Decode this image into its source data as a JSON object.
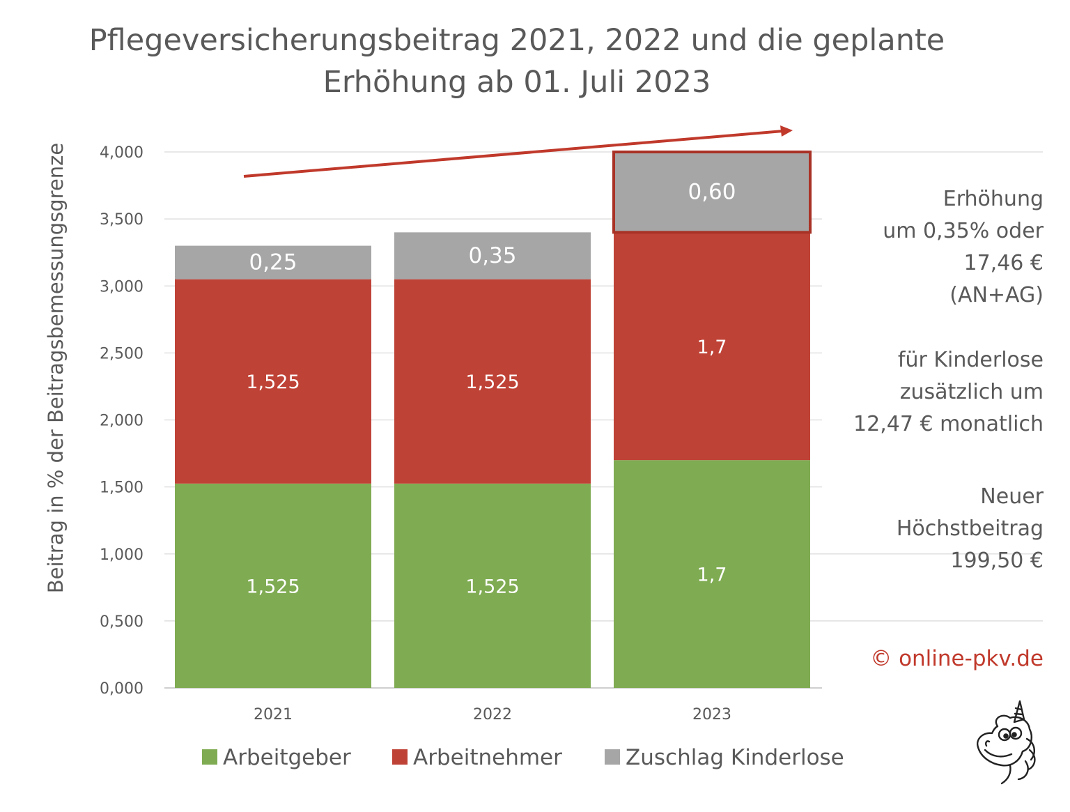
{
  "chart_data": {
    "type": "bar",
    "stacked": true,
    "title_lines": [
      "Pflegeversicherungsbeitrag 2021, 2022 und die geplante",
      "Erhöhung ab 01. Juli 2023"
    ],
    "ylabel": "Beitrag in % der Beitragsbemessungsgrenze",
    "ylim": [
      0,
      4
    ],
    "yticks": [
      "0,000",
      "0,500",
      "1,000",
      "1,500",
      "2,000",
      "2,500",
      "3,000",
      "3,500",
      "4,000"
    ],
    "ytick_values": [
      0,
      0.5,
      1,
      1.5,
      2,
      2.5,
      3,
      3.5,
      4
    ],
    "categories": [
      "2021",
      "2022",
      "2023"
    ],
    "series": [
      {
        "name": "Arbeitgeber",
        "color": "#7fab52",
        "values": [
          1.525,
          1.525,
          1.7
        ],
        "labels": [
          "1,525",
          "1,525",
          "1,7"
        ]
      },
      {
        "name": "Arbeitnehmer",
        "color": "#bf4236",
        "values": [
          1.525,
          1.525,
          1.7
        ],
        "labels": [
          "1,525",
          "1,525",
          "1,7"
        ]
      },
      {
        "name": "Zuschlag Kinderlose",
        "color": "#a6a6a6",
        "values": [
          0.25,
          0.35,
          0.6
        ],
        "labels": [
          "0,25",
          "0,35",
          "0,60"
        ]
      }
    ],
    "grid": true,
    "legend_position": "bottom",
    "highlighted_segment": {
      "category": "2023",
      "series": "Zuschlag Kinderlose"
    },
    "trend_arrow": true
  },
  "notes": {
    "increase": [
      "Erhöhung",
      "um 0,35% oder",
      "17,46 €",
      "(AN+AG)"
    ],
    "childless": [
      "für Kinderlose",
      "zusätzlich um",
      "12,47 € monatlich"
    ],
    "max_contribution": [
      "Neuer",
      "Höchstbeitrag",
      "199,50 €"
    ]
  },
  "copyright": "© online-pkv.de",
  "colors": {
    "text": "#595959",
    "grid": "#d9d9d9",
    "accent": "#c0392b",
    "highlight_border": "#a93226"
  },
  "icons": {
    "mascot": "unicorn-mascot-icon"
  }
}
